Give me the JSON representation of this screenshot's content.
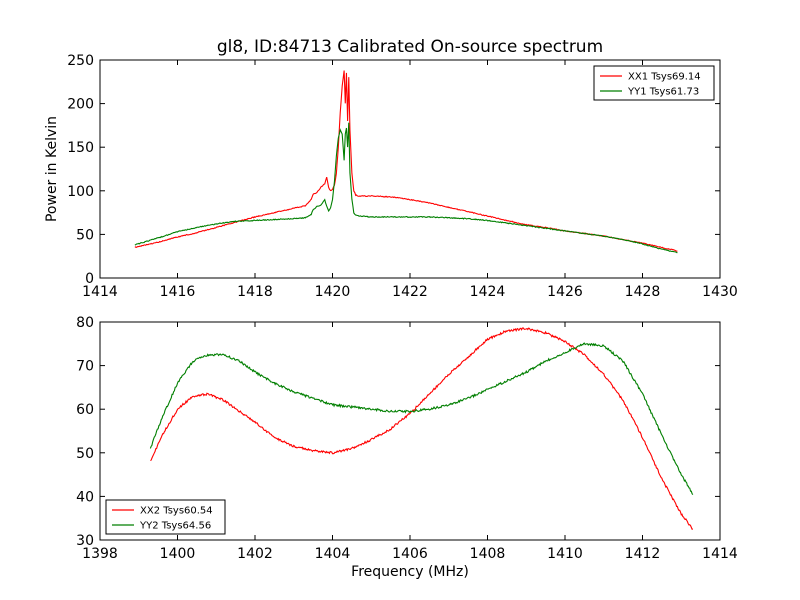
{
  "chart_data": [
    {
      "type": "line",
      "title": "gl8, ID:84713 Calibrated On-source spectrum",
      "xlabel": "",
      "ylabel": "Power in Kelvin",
      "xlim": [
        1414,
        1430
      ],
      "ylim": [
        0,
        250
      ],
      "xticks": [
        "1414",
        "1416",
        "1418",
        "1420",
        "1422",
        "1424",
        "1426",
        "1428",
        "1430"
      ],
      "yticks": [
        "0",
        "50",
        "100",
        "150",
        "200",
        "250"
      ],
      "legend": "top-right",
      "grid": false,
      "series": [
        {
          "name": "XX1 Tsys69.14",
          "color": "#ff0000",
          "x": [
            1414.9,
            1415.5,
            1416.0,
            1416.5,
            1417.0,
            1417.5,
            1418.0,
            1418.5,
            1419.0,
            1419.3,
            1419.45,
            1419.5,
            1419.6,
            1419.7,
            1419.8,
            1419.85,
            1419.9,
            1419.95,
            1420.0,
            1420.05,
            1420.1,
            1420.15,
            1420.2,
            1420.25,
            1420.3,
            1420.33,
            1420.36,
            1420.39,
            1420.42,
            1420.45,
            1420.5,
            1420.55,
            1420.6,
            1420.7,
            1421.0,
            1421.5,
            1422.0,
            1422.5,
            1423.0,
            1423.5,
            1424.0,
            1424.5,
            1425.0,
            1425.5,
            1426.0,
            1426.5,
            1427.0,
            1427.5,
            1428.0,
            1428.5,
            1428.9
          ],
          "y": [
            35,
            41,
            47,
            52,
            58,
            64,
            70,
            75,
            80,
            83,
            90,
            96,
            98,
            104,
            108,
            116,
            104,
            100,
            102,
            106,
            120,
            150,
            190,
            220,
            238,
            200,
            235,
            180,
            230,
            170,
            120,
            100,
            95,
            94,
            94,
            93,
            90,
            86,
            81,
            76,
            71,
            66,
            61,
            58,
            54,
            51,
            48,
            44,
            40,
            35,
            31
          ]
        },
        {
          "name": "YY1 Tsys61.73",
          "color": "#007f00",
          "x": [
            1414.9,
            1415.5,
            1416.0,
            1416.5,
            1417.0,
            1417.5,
            1418.0,
            1418.5,
            1419.0,
            1419.3,
            1419.45,
            1419.5,
            1419.6,
            1419.7,
            1419.8,
            1419.85,
            1419.9,
            1419.95,
            1420.0,
            1420.05,
            1420.1,
            1420.15,
            1420.2,
            1420.25,
            1420.3,
            1420.33,
            1420.36,
            1420.39,
            1420.42,
            1420.45,
            1420.5,
            1420.55,
            1420.6,
            1420.7,
            1421.0,
            1421.5,
            1422.0,
            1422.5,
            1423.0,
            1423.5,
            1424.0,
            1424.5,
            1425.0,
            1425.5,
            1426.0,
            1426.5,
            1427.0,
            1427.5,
            1428.0,
            1428.5,
            1428.9
          ],
          "y": [
            38,
            46,
            53,
            58,
            62,
            65,
            66,
            67,
            68,
            69,
            73,
            78,
            82,
            84,
            90,
            82,
            77,
            80,
            90,
            110,
            140,
            160,
            170,
            165,
            135,
            165,
            172,
            150,
            178,
            120,
            90,
            75,
            72,
            71,
            70,
            70,
            70,
            70,
            69,
            68,
            66,
            63,
            60,
            57,
            54,
            51,
            48,
            44,
            39,
            33,
            29
          ]
        }
      ]
    },
    {
      "type": "line",
      "title": "",
      "xlabel": "Frequency (MHz)",
      "ylabel": "",
      "xlim": [
        1398,
        1414
      ],
      "ylim": [
        30,
        80
      ],
      "xticks": [
        "1398",
        "1400",
        "1402",
        "1404",
        "1406",
        "1408",
        "1410",
        "1412",
        "1414"
      ],
      "yticks": [
        "30",
        "40",
        "50",
        "60",
        "70",
        "80"
      ],
      "legend": "bottom-left",
      "grid": false,
      "series": [
        {
          "name": "XX2 Tsys60.54",
          "color": "#ff0000",
          "x": [
            1399.3,
            1399.6,
            1400.0,
            1400.4,
            1400.8,
            1401.2,
            1401.6,
            1402.0,
            1402.5,
            1403.0,
            1403.5,
            1404.0,
            1404.5,
            1405.0,
            1405.5,
            1406.0,
            1406.5,
            1407.0,
            1407.5,
            1408.0,
            1408.5,
            1409.0,
            1409.5,
            1410.0,
            1410.5,
            1411.0,
            1411.5,
            1412.0,
            1412.5,
            1413.0,
            1413.3
          ],
          "y": [
            48,
            54,
            60,
            63,
            63.5,
            62,
            59.5,
            57,
            53.5,
            51.5,
            50.5,
            50,
            51,
            53,
            55.5,
            59,
            63.5,
            68,
            72,
            76,
            78,
            78.5,
            77.5,
            75.5,
            72.5,
            68,
            62,
            53.5,
            44,
            36,
            32.5
          ]
        },
        {
          "name": "YY2 Tsys64.56",
          "color": "#007f00",
          "x": [
            1399.3,
            1399.6,
            1400.0,
            1400.4,
            1400.8,
            1401.2,
            1401.6,
            1402.0,
            1402.5,
            1403.0,
            1403.5,
            1404.0,
            1404.5,
            1405.0,
            1405.5,
            1406.0,
            1406.5,
            1407.0,
            1407.5,
            1408.0,
            1408.5,
            1409.0,
            1409.5,
            1410.0,
            1410.5,
            1411.0,
            1411.5,
            1412.0,
            1412.5,
            1413.0,
            1413.3
          ],
          "y": [
            51,
            58,
            66,
            71,
            72.5,
            72.5,
            71,
            68.5,
            66,
            64,
            62.5,
            61,
            60.5,
            60,
            59.5,
            59.5,
            60,
            61,
            62.5,
            64.5,
            66.5,
            68.5,
            71,
            73,
            75,
            74.5,
            71,
            63.5,
            54,
            45,
            40.5
          ]
        }
      ]
    }
  ]
}
